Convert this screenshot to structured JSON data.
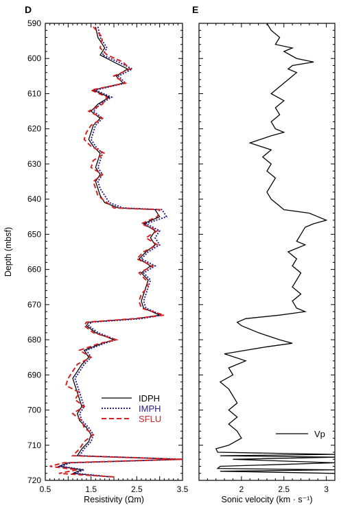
{
  "chart_data": [
    {
      "type": "line",
      "panel_label": "D",
      "xlabel": "Resistivity (Ωm)",
      "ylabel": "Depth (mbsf)",
      "xlim": [
        0.5,
        3.5
      ],
      "ylim": [
        590,
        720
      ],
      "y_inverted": true,
      "x_ticks": [
        "0.5",
        "1",
        "1.5",
        "2",
        "2.5",
        "3",
        "3.5"
      ],
      "x_tick_values": [
        0.5,
        1,
        1.5,
        2,
        2.5,
        3,
        3.5
      ],
      "x_tick_labels": [
        "0.5",
        "",
        "1.5",
        "",
        "2.5",
        "",
        "3.5"
      ],
      "y_ticks": [
        590,
        600,
        610,
        620,
        630,
        640,
        650,
        660,
        670,
        680,
        690,
        700,
        710,
        720
      ],
      "y_tick_labels": [
        "590",
        "600",
        "610",
        "620",
        "630",
        "640",
        "650",
        "660",
        "670",
        "680",
        "690",
        "700",
        "710",
        "720"
      ],
      "legend_position": "lower-right",
      "series": [
        {
          "name": "IDPH",
          "color": "#000000",
          "style": "solid",
          "depth": [
            591,
            594,
            597,
            599,
            601,
            603,
            605,
            607,
            609,
            611,
            613,
            615,
            617,
            619,
            621,
            623,
            625,
            627,
            629,
            631,
            633,
            635,
            637,
            639,
            641,
            642.5,
            643,
            645,
            647,
            649,
            651,
            653,
            655,
            657,
            659,
            661,
            663,
            665,
            667,
            669,
            671,
            673,
            674,
            675,
            676,
            678,
            680,
            681,
            683,
            685,
            687,
            689,
            691,
            693,
            695,
            697,
            699,
            701,
            703,
            705,
            707,
            709,
            711,
            713,
            714,
            715,
            716,
            717,
            718,
            719
          ],
          "resistivity": [
            1.6,
            1.65,
            1.8,
            1.7,
            2.0,
            2.3,
            2.05,
            2.2,
            1.55,
            1.9,
            1.65,
            1.5,
            1.7,
            1.55,
            1.5,
            1.45,
            1.55,
            1.7,
            1.65,
            1.6,
            1.7,
            1.6,
            1.65,
            1.7,
            1.8,
            2.1,
            2.9,
            3.0,
            2.65,
            2.9,
            2.8,
            2.9,
            2.7,
            2.55,
            2.8,
            2.6,
            2.75,
            2.7,
            2.65,
            2.6,
            2.65,
            3.0,
            2.5,
            1.45,
            1.4,
            1.6,
            2.0,
            1.75,
            1.35,
            1.45,
            1.3,
            1.2,
            1.1,
            1.15,
            1.2,
            1.25,
            1.3,
            1.2,
            1.25,
            1.4,
            1.5,
            1.45,
            1.3,
            1.2,
            3.5,
            1.0,
            0.8,
            1.3,
            1.1,
            1.9
          ]
        },
        {
          "name": "IMPH",
          "color": "#2a1a8c",
          "style": "dotted",
          "depth": [
            591,
            594,
            597,
            599,
            601,
            603,
            605,
            607,
            609,
            611,
            613,
            615,
            617,
            619,
            621,
            623,
            625,
            627,
            629,
            631,
            633,
            635,
            637,
            639,
            641,
            642.5,
            643,
            645,
            647,
            649,
            651,
            653,
            655,
            657,
            659,
            661,
            663,
            665,
            667,
            669,
            671,
            673,
            674,
            675,
            676,
            678,
            680,
            681,
            683,
            685,
            687,
            689,
            691,
            693,
            695,
            697,
            699,
            701,
            703,
            705,
            707,
            709,
            711,
            713,
            714,
            715,
            716,
            717,
            718,
            719
          ],
          "resistivity": [
            1.65,
            1.7,
            1.85,
            1.75,
            2.1,
            2.4,
            2.1,
            2.25,
            1.6,
            1.95,
            1.7,
            1.55,
            1.75,
            1.6,
            1.55,
            1.5,
            1.6,
            1.75,
            1.7,
            1.65,
            1.75,
            1.65,
            1.7,
            1.8,
            1.9,
            2.2,
            3.05,
            3.15,
            2.7,
            3.0,
            2.9,
            3.0,
            2.75,
            2.6,
            2.9,
            2.65,
            2.8,
            2.75,
            2.7,
            2.65,
            2.7,
            3.05,
            2.6,
            1.5,
            1.45,
            1.65,
            2.05,
            1.8,
            1.4,
            1.5,
            1.35,
            1.25,
            1.15,
            1.2,
            1.25,
            1.3,
            1.35,
            1.25,
            1.3,
            1.45,
            1.55,
            1.5,
            1.35,
            1.25,
            3.5,
            1.05,
            0.85,
            1.35,
            1.15,
            1.95
          ]
        },
        {
          "name": "SFLU",
          "color": "#d42020",
          "style": "dashed",
          "depth": [
            591,
            594,
            597,
            599,
            601,
            603,
            605,
            607,
            609,
            611,
            613,
            615,
            617,
            619,
            621,
            623,
            625,
            627,
            629,
            631,
            633,
            635,
            637,
            639,
            641,
            642.5,
            643,
            645,
            647,
            649,
            651,
            653,
            655,
            657,
            659,
            661,
            663,
            665,
            667,
            669,
            671,
            673,
            674,
            675,
            676,
            678,
            680,
            681,
            683,
            685,
            687,
            689,
            691,
            693,
            695,
            697,
            699,
            701,
            703,
            705,
            707,
            709,
            711,
            713,
            714,
            715,
            716,
            717,
            718,
            719
          ],
          "resistivity": [
            1.55,
            1.75,
            1.7,
            1.85,
            2.2,
            2.35,
            2.0,
            2.25,
            1.5,
            1.85,
            1.75,
            1.45,
            1.75,
            1.5,
            1.4,
            1.35,
            1.5,
            1.8,
            1.55,
            1.5,
            1.75,
            1.55,
            1.6,
            1.65,
            1.85,
            2.0,
            3.0,
            2.95,
            2.6,
            2.95,
            2.7,
            2.95,
            2.65,
            2.5,
            2.85,
            2.55,
            2.7,
            2.75,
            2.6,
            2.55,
            2.6,
            3.1,
            2.45,
            1.4,
            1.35,
            1.55,
            2.05,
            1.7,
            1.25,
            1.5,
            1.2,
            1.1,
            1.0,
            0.95,
            1.25,
            1.15,
            1.35,
            1.1,
            1.3,
            1.35,
            1.55,
            1.35,
            1.25,
            1.1,
            3.5,
            0.9,
            0.6,
            1.2,
            0.8,
            2.0
          ]
        }
      ]
    },
    {
      "type": "line",
      "panel_label": "E",
      "xlabel": "Sonic velocity (km · s⁻¹)",
      "ylabel": "",
      "xlim": [
        1.5,
        3.1
      ],
      "ylim": [
        590,
        720
      ],
      "y_inverted": true,
      "x_tick_values": [
        2,
        2.5,
        3
      ],
      "x_tick_labels": [
        "2",
        "2.5",
        "3"
      ],
      "legend_position": "lower-right",
      "series": [
        {
          "name": "Vp",
          "color": "#000000",
          "style": "solid",
          "depth": [
            590,
            592,
            594,
            596,
            597,
            598,
            600,
            601,
            602,
            603,
            604,
            606,
            608,
            610,
            612,
            614,
            616,
            618,
            620,
            621,
            622,
            624,
            626,
            628,
            630,
            632,
            634,
            636,
            638,
            640,
            641,
            643,
            644,
            645,
            646,
            647,
            648,
            650,
            652,
            653,
            655,
            657,
            659,
            661,
            663,
            665,
            667,
            669,
            671,
            672,
            673,
            674,
            675,
            676,
            678,
            680,
            681,
            682,
            684,
            686,
            688,
            690,
            692,
            694,
            696,
            698,
            700,
            702,
            704,
            706,
            708,
            710,
            711,
            712,
            712.6,
            713,
            713.4,
            714,
            715,
            716,
            716.6,
            717,
            717.4,
            718
          ],
          "velocity": [
            2.3,
            2.35,
            2.45,
            2.4,
            2.6,
            2.5,
            2.65,
            2.85,
            2.6,
            2.55,
            2.65,
            2.55,
            2.45,
            2.35,
            2.5,
            2.4,
            2.45,
            2.35,
            2.4,
            2.5,
            2.35,
            2.1,
            2.35,
            2.25,
            2.35,
            2.3,
            2.4,
            2.35,
            2.3,
            2.35,
            2.4,
            2.5,
            2.8,
            2.9,
            3.0,
            2.85,
            2.75,
            2.7,
            2.65,
            2.75,
            2.55,
            2.65,
            2.6,
            2.7,
            2.65,
            2.6,
            2.7,
            2.6,
            2.65,
            2.75,
            2.45,
            2.05,
            1.95,
            2.0,
            2.2,
            2.45,
            2.6,
            2.3,
            1.8,
            2.05,
            1.85,
            1.9,
            1.75,
            1.85,
            1.9,
            1.95,
            1.85,
            1.95,
            1.85,
            1.95,
            2.0,
            1.85,
            1.7,
            1.72,
            3.1,
            1.75,
            3.1,
            1.9,
            3.1,
            1.75,
            1.72,
            3.1,
            1.75,
            3.1
          ]
        }
      ]
    }
  ]
}
